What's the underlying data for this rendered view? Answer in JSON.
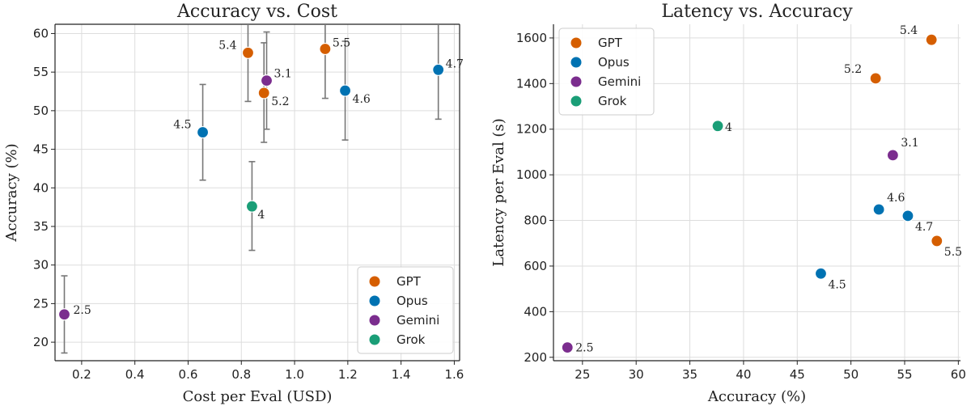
{
  "colors": {
    "GPT": "#d55e00",
    "Opus": "#0072b2",
    "Gemini": "#7b2d8e",
    "Grok": "#1a9e77"
  },
  "chart_data": [
    {
      "type": "scatter",
      "title": "Accuracy vs. Cost",
      "xlabel": "Cost per Eval (USD)",
      "ylabel": "Accuracy (%)",
      "xlim": [
        0.1,
        1.62
      ],
      "ylim": [
        17.6,
        61.2
      ],
      "xticks": [
        0.2,
        0.4,
        0.6,
        0.8,
        1.0,
        1.2,
        1.4,
        1.6
      ],
      "xtick_labels": [
        "0.2",
        "0.4",
        "0.6",
        "0.8",
        "1.0",
        "1.2",
        "1.4",
        "1.6"
      ],
      "yticks": [
        20,
        25,
        30,
        35,
        40,
        45,
        50,
        55,
        60
      ],
      "ytick_labels": [
        "20",
        "25",
        "30",
        "35",
        "40",
        "45",
        "50",
        "55",
        "60"
      ],
      "grid": true,
      "legend": "lower-right",
      "series": [
        {
          "name": "GPT",
          "points": [
            {
              "label": "5.4",
              "x": 0.825,
              "y": 57.5,
              "err_low": 51.2,
              "err_high": 63.5
            },
            {
              "label": "5.2",
              "x": 0.885,
              "y": 52.3,
              "err_low": 45.9,
              "err_high": 58.8
            },
            {
              "label": "5.5",
              "x": 1.115,
              "y": 58.0,
              "err_low": 51.6,
              "err_high": 64.0
            }
          ]
        },
        {
          "name": "Opus",
          "points": [
            {
              "label": "4.5",
              "x": 0.655,
              "y": 47.2,
              "err_low": 41.0,
              "err_high": 53.4
            },
            {
              "label": "4.6",
              "x": 1.19,
              "y": 52.6,
              "err_low": 46.2,
              "err_high": 59.0
            },
            {
              "label": "4.7",
              "x": 1.54,
              "y": 55.3,
              "err_low": 48.9,
              "err_high": 61.6
            }
          ]
        },
        {
          "name": "Gemini",
          "points": [
            {
              "label": "3.1",
              "x": 0.895,
              "y": 53.9,
              "err_low": 47.6,
              "err_high": 60.2
            },
            {
              "label": "2.5",
              "x": 0.135,
              "y": 23.6,
              "err_low": 18.6,
              "err_high": 28.6
            }
          ]
        },
        {
          "name": "Grok",
          "points": [
            {
              "label": "4",
              "x": 0.84,
              "y": 37.6,
              "err_low": 31.9,
              "err_high": 43.4
            }
          ]
        }
      ]
    },
    {
      "type": "scatter",
      "title": "Latency vs. Accuracy",
      "xlabel": "Accuracy (%)",
      "ylabel": "Latency per Eval (s)",
      "xlim": [
        22.3,
        60.2
      ],
      "ylim": [
        185,
        1660
      ],
      "xticks": [
        25,
        30,
        35,
        40,
        45,
        50,
        55,
        60
      ],
      "xtick_labels": [
        "25",
        "30",
        "35",
        "40",
        "45",
        "50",
        "55",
        "60"
      ],
      "yticks": [
        200,
        400,
        600,
        800,
        1000,
        1200,
        1400,
        1600
      ],
      "ytick_labels": [
        "200",
        "400",
        "600",
        "800",
        "1000",
        "1200",
        "1400",
        "1600"
      ],
      "grid": true,
      "legend": "top-left",
      "series": [
        {
          "name": "GPT",
          "points": [
            {
              "label": "5.4",
              "x": 57.5,
              "y": 1592
            },
            {
              "label": "5.2",
              "x": 52.3,
              "y": 1423
            },
            {
              "label": "5.5",
              "x": 58.0,
              "y": 710
            }
          ]
        },
        {
          "name": "Opus",
          "points": [
            {
              "label": "4.6",
              "x": 52.6,
              "y": 848
            },
            {
              "label": "4.7",
              "x": 55.3,
              "y": 820
            },
            {
              "label": "4.5",
              "x": 47.2,
              "y": 567
            }
          ]
        },
        {
          "name": "Gemini",
          "points": [
            {
              "label": "3.1",
              "x": 53.9,
              "y": 1086
            },
            {
              "label": "2.5",
              "x": 23.6,
              "y": 243
            }
          ]
        },
        {
          "name": "Grok",
          "points": [
            {
              "label": "4",
              "x": 37.6,
              "y": 1214
            }
          ]
        }
      ]
    }
  ]
}
